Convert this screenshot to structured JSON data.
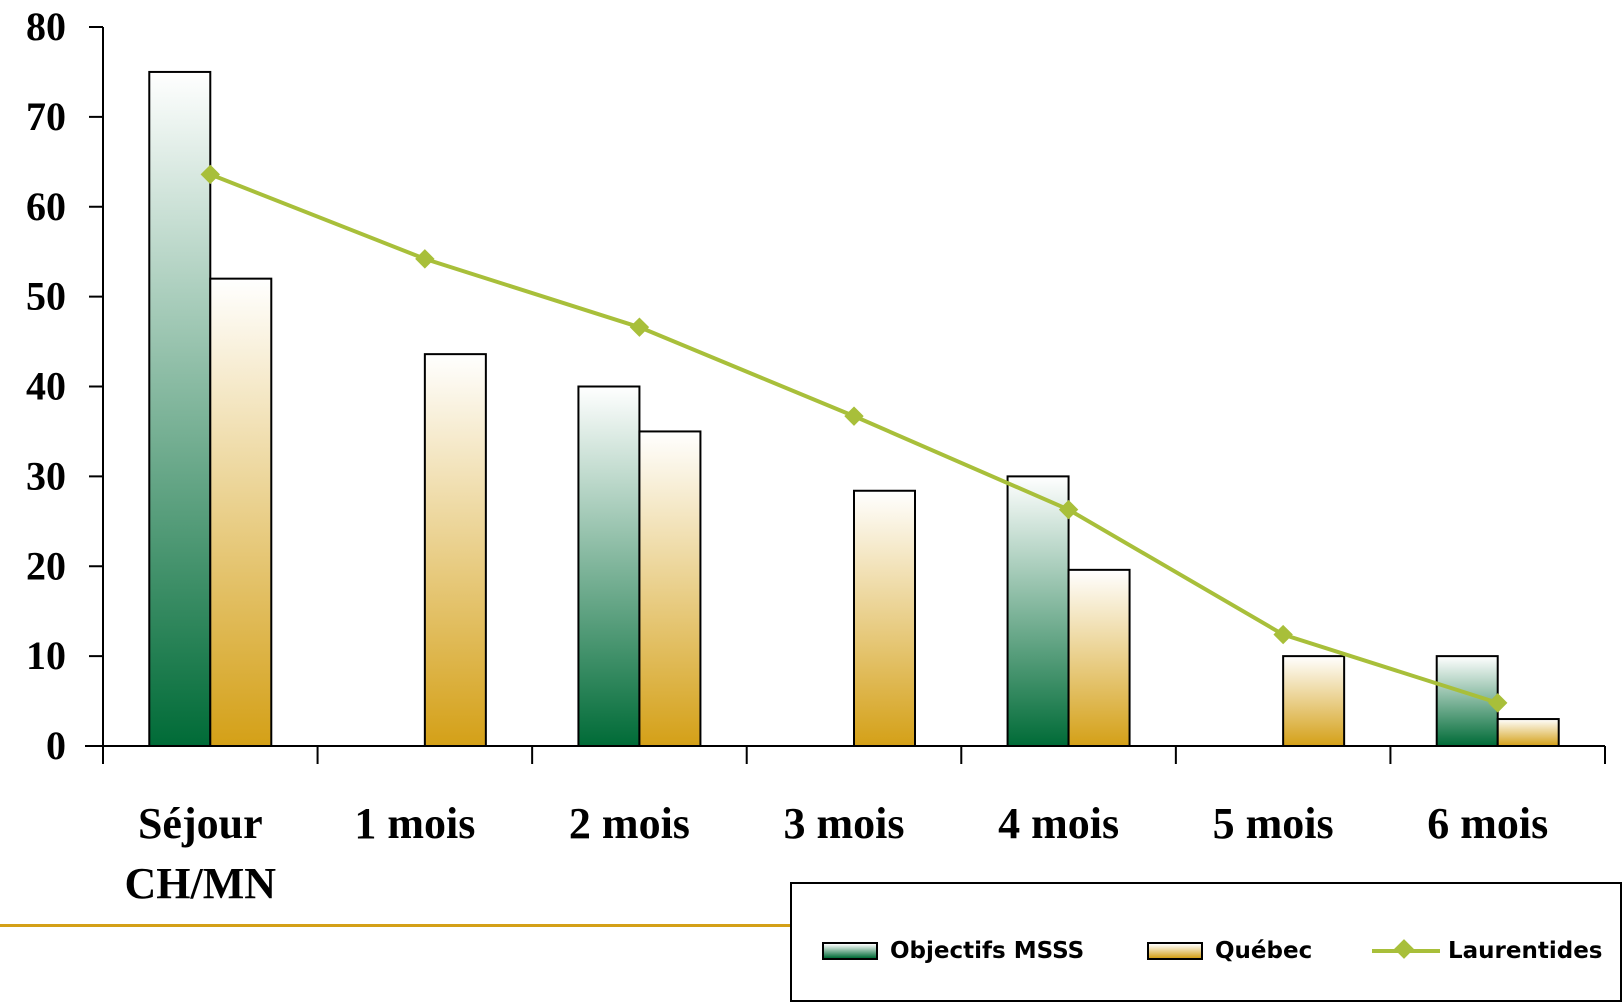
{
  "chart_data": {
    "type": "bar",
    "categories": [
      "Séjour CH/MN",
      "1 mois",
      "2 mois",
      "3 mois",
      "4 mois",
      "5 mois",
      "6 mois"
    ],
    "category_lines": [
      [
        "Séjour",
        "CH/MN"
      ],
      [
        "1 mois"
      ],
      [
        "2 mois"
      ],
      [
        "3 mois"
      ],
      [
        "4 mois"
      ],
      [
        "5 mois"
      ],
      [
        "6 mois"
      ]
    ],
    "series": [
      {
        "name": "Objectifs MSSS",
        "type": "bar",
        "values": [
          75,
          null,
          40,
          null,
          30,
          null,
          10
        ],
        "gradient": [
          "#ffffff",
          "#006b37"
        ]
      },
      {
        "name": "Québec",
        "type": "bar",
        "values": [
          52,
          43.6,
          35,
          28.4,
          19.6,
          10,
          3
        ],
        "gradient": [
          "#ffffff",
          "#d4a017"
        ]
      },
      {
        "name": "Laurentides",
        "type": "line",
        "values": [
          63.6,
          54.2,
          46.6,
          36.7,
          26.3,
          12.4,
          4.8
        ],
        "color": "#a8bf3a",
        "marker": "diamond"
      }
    ],
    "ylim": [
      0,
      80
    ],
    "yticks": [
      "0",
      "10",
      "20",
      "30",
      "40",
      "50",
      "60",
      "70",
      "80"
    ],
    "title": "",
    "xlabel": "",
    "ylabel": "",
    "grid": false,
    "legend_position": "bottom-right"
  },
  "legend": {
    "items": [
      {
        "label": "Objectifs MSSS"
      },
      {
        "label": "Québec"
      },
      {
        "label": "Laurentides"
      }
    ]
  },
  "colors": {
    "axis": "#000000",
    "bar_border": "#000000",
    "footer_rule": "#d4a017",
    "line": "#a8bf3a"
  }
}
